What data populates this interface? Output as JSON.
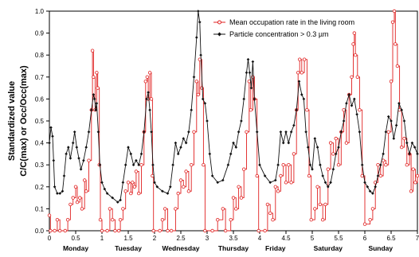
{
  "chart_data": {
    "type": "line",
    "title": "",
    "ylabel_line1": "Standardized value",
    "ylabel_line2": "C/C(max) or Occ/Occ(max)",
    "xlim": [
      0,
      7
    ],
    "ylim": [
      0,
      1
    ],
    "yticks": [
      "0.0",
      "0.1",
      "0.2",
      "0.3",
      "0.4",
      "0.5",
      "0.6",
      "0.7",
      "0.8",
      "0.9",
      "1.0"
    ],
    "xticks": [
      "0",
      "0.5",
      "1",
      "1.5",
      "2",
      "2.5",
      "3",
      "3.5",
      "4",
      "4.5",
      "5",
      "5.5",
      "6",
      "6.5",
      "7"
    ],
    "day_labels": [
      {
        "label": "Monday",
        "x": 0.5
      },
      {
        "label": "Tuesday",
        "x": 1.5
      },
      {
        "label": "Wednesday",
        "x": 2.5
      },
      {
        "label": "Thursday",
        "x": 3.5
      },
      {
        "label": "Friday",
        "x": 4.3
      },
      {
        "label": "Saturday",
        "x": 5.3
      },
      {
        "label": "Sunday",
        "x": 6.3
      }
    ],
    "legend_position": "top-right",
    "series": [
      {
        "name": "Mean occupation rate in the living room",
        "color": "#e02020",
        "marker": "open-circle",
        "step": true,
        "points": [
          [
            0,
            0.07
          ],
          [
            0.02,
            0
          ],
          [
            0.1,
            0
          ],
          [
            0.15,
            0.05
          ],
          [
            0.2,
            0
          ],
          [
            0.3,
            0
          ],
          [
            0.35,
            0.05
          ],
          [
            0.4,
            0.12
          ],
          [
            0.45,
            0.15
          ],
          [
            0.5,
            0.2
          ],
          [
            0.53,
            0.13
          ],
          [
            0.58,
            0.15
          ],
          [
            0.62,
            0.1
          ],
          [
            0.67,
            0.23
          ],
          [
            0.7,
            0.18
          ],
          [
            0.75,
            0.32
          ],
          [
            0.8,
            0.55
          ],
          [
            0.82,
            0.82
          ],
          [
            0.84,
            0.7
          ],
          [
            0.87,
            0.55
          ],
          [
            0.9,
            0.72
          ],
          [
            0.92,
            0.65
          ],
          [
            0.95,
            0.3
          ],
          [
            0.97,
            0.05
          ],
          [
            1.0,
            0
          ],
          [
            1.1,
            0
          ],
          [
            1.15,
            0.1
          ],
          [
            1.2,
            0.05
          ],
          [
            1.25,
            0
          ],
          [
            1.32,
            0
          ],
          [
            1.35,
            0.05
          ],
          [
            1.4,
            0.1
          ],
          [
            1.45,
            0.18
          ],
          [
            1.5,
            0.22
          ],
          [
            1.55,
            0.17
          ],
          [
            1.58,
            0.22
          ],
          [
            1.62,
            0.2
          ],
          [
            1.65,
            0.27
          ],
          [
            1.7,
            0.17
          ],
          [
            1.75,
            0.3
          ],
          [
            1.8,
            0.45
          ],
          [
            1.83,
            0.68
          ],
          [
            1.86,
            0.7
          ],
          [
            1.88,
            0.6
          ],
          [
            1.91,
            0.72
          ],
          [
            1.94,
            0.6
          ],
          [
            1.96,
            0.25
          ],
          [
            1.98,
            0
          ],
          [
            2.1,
            0
          ],
          [
            2.15,
            0.05
          ],
          [
            2.2,
            0.1
          ],
          [
            2.25,
            0
          ],
          [
            2.32,
            0
          ],
          [
            2.4,
            0.1
          ],
          [
            2.45,
            0.17
          ],
          [
            2.5,
            0.23
          ],
          [
            2.55,
            0.2
          ],
          [
            2.6,
            0.27
          ],
          [
            2.65,
            0.18
          ],
          [
            2.7,
            0.3
          ],
          [
            2.75,
            0.45
          ],
          [
            2.8,
            0.68
          ],
          [
            2.83,
            0.62
          ],
          [
            2.86,
            0.78
          ],
          [
            2.9,
            0.65
          ],
          [
            2.93,
            0.3
          ],
          [
            2.96,
            0
          ],
          [
            3.1,
            0
          ],
          [
            3.2,
            0.05
          ],
          [
            3.3,
            0.1
          ],
          [
            3.35,
            0
          ],
          [
            3.45,
            0.05
          ],
          [
            3.5,
            0.15
          ],
          [
            3.55,
            0.1
          ],
          [
            3.6,
            0.2
          ],
          [
            3.65,
            0.15
          ],
          [
            3.7,
            0.28
          ],
          [
            3.75,
            0.45
          ],
          [
            3.8,
            0.68
          ],
          [
            3.83,
            0.55
          ],
          [
            3.87,
            0.7
          ],
          [
            3.9,
            0.6
          ],
          [
            3.95,
            0.25
          ],
          [
            3.98,
            0
          ],
          [
            4.1,
            0
          ],
          [
            4.15,
            0.12
          ],
          [
            4.2,
            0.08
          ],
          [
            4.25,
            0.05
          ],
          [
            4.3,
            0.2
          ],
          [
            4.35,
            0.18
          ],
          [
            4.4,
            0.25
          ],
          [
            4.45,
            0.3
          ],
          [
            4.5,
            0.22
          ],
          [
            4.55,
            0.3
          ],
          [
            4.6,
            0.22
          ],
          [
            4.65,
            0.35
          ],
          [
            4.7,
            0.55
          ],
          [
            4.73,
            0.72
          ],
          [
            4.76,
            0.78
          ],
          [
            4.8,
            0.72
          ],
          [
            4.85,
            0.78
          ],
          [
            4.9,
            0.55
          ],
          [
            4.94,
            0.25
          ],
          [
            4.98,
            0.05
          ],
          [
            5.05,
            0.1
          ],
          [
            5.1,
            0.2
          ],
          [
            5.15,
            0.12
          ],
          [
            5.2,
            0.05
          ],
          [
            5.25,
            0.12
          ],
          [
            5.3,
            0.28
          ],
          [
            5.35,
            0.4
          ],
          [
            5.4,
            0.35
          ],
          [
            5.45,
            0.42
          ],
          [
            5.5,
            0.3
          ],
          [
            5.55,
            0.45
          ],
          [
            5.6,
            0.55
          ],
          [
            5.65,
            0.4
          ],
          [
            5.7,
            0.62
          ],
          [
            5.75,
            0.7
          ],
          [
            5.78,
            0.85
          ],
          [
            5.8,
            0.9
          ],
          [
            5.82,
            0.8
          ],
          [
            5.86,
            0.7
          ],
          [
            5.9,
            0.55
          ],
          [
            5.95,
            0.25
          ],
          [
            6.0,
            0.03
          ],
          [
            6.1,
            0.05
          ],
          [
            6.15,
            0.1
          ],
          [
            6.2,
            0.22
          ],
          [
            6.25,
            0.3
          ],
          [
            6.3,
            0.25
          ],
          [
            6.35,
            0.32
          ],
          [
            6.4,
            0.3
          ],
          [
            6.45,
            0.45
          ],
          [
            6.5,
            0.68
          ],
          [
            6.53,
            0.95
          ],
          [
            6.56,
            1.0
          ],
          [
            6.58,
            0.85
          ],
          [
            6.62,
            0.75
          ],
          [
            6.66,
            0.55
          ],
          [
            6.7,
            0.38
          ],
          [
            6.75,
            0.42
          ],
          [
            6.8,
            0.3
          ],
          [
            6.85,
            0.35
          ],
          [
            6.88,
            0.18
          ],
          [
            6.92,
            0.28
          ],
          [
            6.96,
            0.22
          ],
          [
            7.0,
            0.25
          ]
        ]
      },
      {
        "name": "Particle concentration > 0.3 µm",
        "color": "#111111",
        "marker": "filled-diamond",
        "step": false,
        "points": [
          [
            0,
            0.4
          ],
          [
            0.03,
            0.47
          ],
          [
            0.06,
            0.43
          ],
          [
            0.08,
            0.32
          ],
          [
            0.1,
            0.2
          ],
          [
            0.15,
            0.17
          ],
          [
            0.2,
            0.17
          ],
          [
            0.25,
            0.18
          ],
          [
            0.28,
            0.25
          ],
          [
            0.32,
            0.35
          ],
          [
            0.36,
            0.38
          ],
          [
            0.4,
            0.33
          ],
          [
            0.45,
            0.4
          ],
          [
            0.48,
            0.45
          ],
          [
            0.52,
            0.38
          ],
          [
            0.56,
            0.33
          ],
          [
            0.6,
            0.28
          ],
          [
            0.65,
            0.32
          ],
          [
            0.7,
            0.38
          ],
          [
            0.75,
            0.45
          ],
          [
            0.8,
            0.55
          ],
          [
            0.84,
            0.62
          ],
          [
            0.86,
            0.6
          ],
          [
            0.88,
            0.55
          ],
          [
            0.9,
            0.58
          ],
          [
            0.93,
            0.45
          ],
          [
            0.96,
            0.3
          ],
          [
            1.0,
            0.22
          ],
          [
            1.05,
            0.19
          ],
          [
            1.1,
            0.17
          ],
          [
            1.2,
            0.15
          ],
          [
            1.3,
            0.13
          ],
          [
            1.35,
            0.14
          ],
          [
            1.4,
            0.22
          ],
          [
            1.45,
            0.3
          ],
          [
            1.5,
            0.38
          ],
          [
            1.55,
            0.35
          ],
          [
            1.6,
            0.3
          ],
          [
            1.65,
            0.32
          ],
          [
            1.7,
            0.3
          ],
          [
            1.75,
            0.35
          ],
          [
            1.8,
            0.45
          ],
          [
            1.85,
            0.6
          ],
          [
            1.88,
            0.63
          ],
          [
            1.91,
            0.55
          ],
          [
            1.94,
            0.45
          ],
          [
            1.97,
            0.3
          ],
          [
            2.0,
            0.22
          ],
          [
            2.05,
            0.2
          ],
          [
            2.15,
            0.18
          ],
          [
            2.25,
            0.17
          ],
          [
            2.3,
            0.2
          ],
          [
            2.35,
            0.3
          ],
          [
            2.4,
            0.4
          ],
          [
            2.45,
            0.35
          ],
          [
            2.5,
            0.38
          ],
          [
            2.55,
            0.42
          ],
          [
            2.6,
            0.4
          ],
          [
            2.65,
            0.45
          ],
          [
            2.7,
            0.55
          ],
          [
            2.75,
            0.7
          ],
          [
            2.8,
            0.88
          ],
          [
            2.83,
            1.0
          ],
          [
            2.86,
            0.95
          ],
          [
            2.88,
            0.8
          ],
          [
            2.92,
            0.6
          ],
          [
            2.96,
            0.58
          ],
          [
            3.0,
            0.5
          ],
          [
            3.05,
            0.35
          ],
          [
            3.1,
            0.25
          ],
          [
            3.2,
            0.22
          ],
          [
            3.3,
            0.23
          ],
          [
            3.4,
            0.3
          ],
          [
            3.45,
            0.35
          ],
          [
            3.5,
            0.4
          ],
          [
            3.55,
            0.38
          ],
          [
            3.6,
            0.45
          ],
          [
            3.65,
            0.5
          ],
          [
            3.7,
            0.6
          ],
          [
            3.75,
            0.72
          ],
          [
            3.78,
            0.78
          ],
          [
            3.81,
            0.72
          ],
          [
            3.84,
            0.65
          ],
          [
            3.87,
            0.77
          ],
          [
            3.9,
            0.6
          ],
          [
            3.95,
            0.45
          ],
          [
            4.0,
            0.3
          ],
          [
            4.1,
            0.25
          ],
          [
            4.2,
            0.22
          ],
          [
            4.3,
            0.23
          ],
          [
            4.35,
            0.3
          ],
          [
            4.4,
            0.45
          ],
          [
            4.45,
            0.4
          ],
          [
            4.5,
            0.45
          ],
          [
            4.55,
            0.4
          ],
          [
            4.6,
            0.45
          ],
          [
            4.65,
            0.48
          ],
          [
            4.7,
            0.55
          ],
          [
            4.75,
            0.68
          ],
          [
            4.8,
            0.62
          ],
          [
            4.84,
            0.6
          ],
          [
            4.88,
            0.45
          ],
          [
            4.92,
            0.38
          ],
          [
            4.96,
            0.3
          ],
          [
            5.0,
            0.28
          ],
          [
            5.05,
            0.42
          ],
          [
            5.1,
            0.38
          ],
          [
            5.15,
            0.3
          ],
          [
            5.2,
            0.25
          ],
          [
            5.25,
            0.22
          ],
          [
            5.3,
            0.2
          ],
          [
            5.35,
            0.22
          ],
          [
            5.4,
            0.28
          ],
          [
            5.45,
            0.35
          ],
          [
            5.5,
            0.38
          ],
          [
            5.55,
            0.45
          ],
          [
            5.6,
            0.5
          ],
          [
            5.65,
            0.58
          ],
          [
            5.7,
            0.62
          ],
          [
            5.75,
            0.57
          ],
          [
            5.8,
            0.6
          ],
          [
            5.85,
            0.53
          ],
          [
            5.9,
            0.45
          ],
          [
            5.95,
            0.3
          ],
          [
            6.0,
            0.22
          ],
          [
            6.05,
            0.2
          ],
          [
            6.1,
            0.18
          ],
          [
            6.15,
            0.17
          ],
          [
            6.2,
            0.2
          ],
          [
            6.25,
            0.25
          ],
          [
            6.3,
            0.3
          ],
          [
            6.35,
            0.35
          ],
          [
            6.4,
            0.45
          ],
          [
            6.45,
            0.52
          ],
          [
            6.5,
            0.5
          ],
          [
            6.55,
            0.42
          ],
          [
            6.6,
            0.48
          ],
          [
            6.65,
            0.58
          ],
          [
            6.7,
            0.55
          ],
          [
            6.75,
            0.5
          ],
          [
            6.8,
            0.4
          ],
          [
            6.85,
            0.35
          ],
          [
            6.9,
            0.4
          ],
          [
            6.95,
            0.38
          ],
          [
            7.0,
            0.35
          ]
        ]
      }
    ]
  }
}
